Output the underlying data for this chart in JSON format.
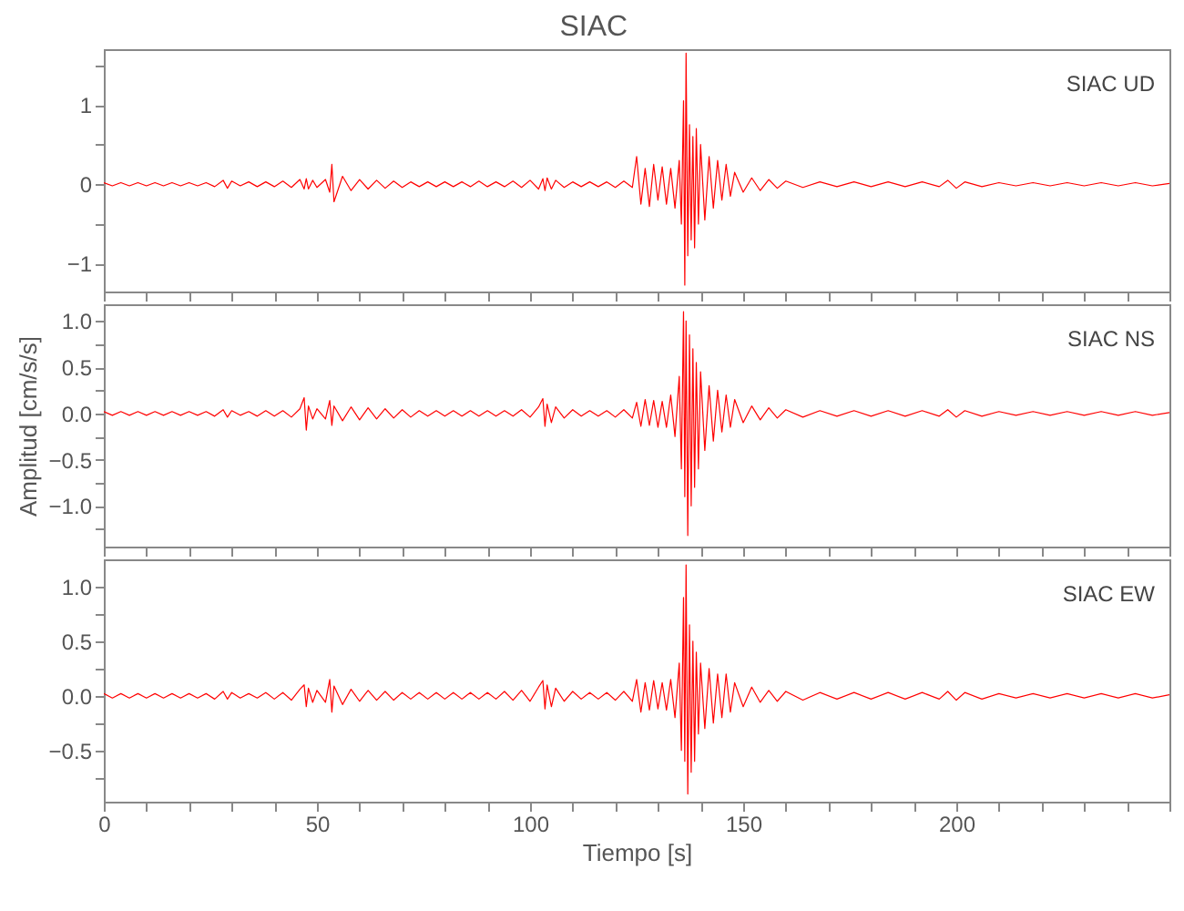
{
  "chart_data": [
    {
      "type": "line",
      "title": "SIAC",
      "annotations": [
        "SIAC UD"
      ],
      "x": [
        0,
        2,
        4,
        6,
        8,
        10,
        12,
        14,
        16,
        18,
        20,
        22,
        24,
        26,
        28,
        29,
        30,
        32,
        34,
        36,
        38,
        40,
        42,
        44,
        46,
        47,
        47.5,
        48,
        49,
        50,
        52,
        53,
        53.5,
        54,
        56,
        58,
        60,
        62,
        64,
        66,
        68,
        70,
        72,
        74,
        76,
        78,
        80,
        82,
        84,
        86,
        88,
        90,
        92,
        94,
        96,
        98,
        100,
        102,
        103,
        103.5,
        104,
        105,
        106,
        108,
        110,
        112,
        114,
        116,
        118,
        120,
        122,
        124,
        125,
        126,
        127,
        128,
        129,
        130,
        131,
        132,
        133,
        134,
        135,
        135.5,
        136,
        136.3,
        136.6,
        137,
        137.4,
        137.8,
        138.2,
        138.6,
        139,
        139.5,
        140,
        141,
        142,
        143,
        144,
        145,
        146,
        147,
        148,
        150,
        152,
        154,
        156,
        158,
        160,
        164,
        168,
        172,
        176,
        180,
        184,
        188,
        192,
        196,
        198,
        200,
        202,
        206,
        210,
        214,
        218,
        222,
        226,
        230,
        234,
        238,
        242,
        246,
        250
      ],
      "series": [
        {
          "color": "#ff0000",
          "values": [
            0.02,
            -0.02,
            0.02,
            -0.02,
            0.02,
            -0.02,
            0.02,
            -0.02,
            0.02,
            -0.02,
            0.02,
            -0.02,
            0.02,
            -0.03,
            0.05,
            -0.05,
            0.04,
            -0.02,
            0.03,
            -0.03,
            0.03,
            -0.03,
            0.04,
            -0.04,
            0.06,
            -0.06,
            0.07,
            -0.06,
            0.05,
            -0.04,
            0.06,
            -0.1,
            0.25,
            -0.22,
            0.1,
            -0.08,
            0.06,
            -0.06,
            0.05,
            -0.05,
            0.04,
            -0.04,
            0.03,
            -0.03,
            0.03,
            -0.03,
            0.03,
            -0.03,
            0.03,
            -0.03,
            0.04,
            -0.03,
            0.03,
            -0.03,
            0.04,
            -0.04,
            0.05,
            -0.06,
            0.07,
            -0.08,
            0.08,
            -0.06,
            0.05,
            -0.04,
            0.03,
            -0.03,
            0.03,
            -0.03,
            0.03,
            -0.04,
            0.04,
            -0.04,
            0.35,
            -0.25,
            0.2,
            -0.28,
            0.25,
            -0.2,
            0.22,
            -0.25,
            0.2,
            -0.3,
            0.3,
            -0.5,
            1.05,
            -1.27,
            1.65,
            -0.9,
            0.75,
            -0.7,
            0.6,
            -0.8,
            0.7,
            -0.5,
            0.5,
            -0.45,
            0.35,
            -0.3,
            0.3,
            -0.2,
            0.25,
            -0.15,
            0.15,
            -0.1,
            0.08,
            -0.08,
            0.06,
            -0.05,
            0.04,
            -0.04,
            0.03,
            -0.03,
            0.03,
            -0.03,
            0.03,
            -0.03,
            0.03,
            -0.03,
            0.05,
            -0.05,
            0.03,
            -0.03,
            0.02,
            -0.02,
            0.02,
            -0.02,
            0.02,
            -0.02,
            0.02,
            -0.02,
            0.02,
            -0.02,
            0.01
          ]
        }
      ],
      "xlim": [
        0,
        250
      ],
      "xticks": [
        0,
        {
          "value": 10,
          "label": null
        },
        {
          "value": 20,
          "label": null
        },
        {
          "value": 30,
          "label": null
        },
        {
          "value": 40,
          "label": null
        },
        50,
        {
          "value": 60,
          "label": null
        },
        {
          "value": 70,
          "label": null
        },
        {
          "value": 80,
          "label": null
        },
        {
          "value": 90,
          "label": null
        },
        100,
        {
          "value": 110,
          "label": null
        },
        {
          "value": 120,
          "label": null
        },
        {
          "value": 130,
          "label": null
        },
        {
          "value": 140,
          "label": null
        },
        150,
        {
          "value": 160,
          "label": null
        },
        {
          "value": 170,
          "label": null
        },
        {
          "value": 180,
          "label": null
        },
        {
          "value": 190,
          "label": null
        },
        200,
        {
          "value": 210,
          "label": null
        },
        {
          "value": 220,
          "label": null
        },
        {
          "value": 230,
          "label": null
        },
        {
          "value": 240,
          "label": null
        },
        {
          "value": 250,
          "label": null
        }
      ],
      "ylim": [
        -1.35,
        1.7
      ],
      "yticks": [
        -1,
        {
          "value": -0.5,
          "label": null
        },
        0,
        {
          "value": 0.5,
          "label": null
        },
        1,
        {
          "value": 1.5,
          "label": null
        }
      ],
      "tick_labels": "y"
    },
    {
      "type": "line",
      "ylabel": "Amplitud [cm/s/s]",
      "annotations": [
        "SIAC NS"
      ],
      "x": [
        0,
        2,
        4,
        6,
        8,
        10,
        12,
        14,
        16,
        18,
        20,
        22,
        24,
        26,
        28,
        29,
        30,
        32,
        34,
        36,
        38,
        40,
        42,
        44,
        46,
        47,
        47.5,
        48,
        49,
        50,
        52,
        53,
        53.5,
        54,
        56,
        58,
        60,
        62,
        64,
        66,
        68,
        70,
        72,
        74,
        76,
        78,
        80,
        82,
        84,
        86,
        88,
        90,
        92,
        94,
        96,
        98,
        100,
        102,
        103,
        103.5,
        104,
        105,
        106,
        108,
        110,
        112,
        114,
        116,
        118,
        120,
        122,
        124,
        125,
        126,
        127,
        128,
        129,
        130,
        131,
        132,
        133,
        134,
        135,
        135.5,
        136,
        136.3,
        136.6,
        137,
        137.4,
        137.8,
        138.2,
        138.6,
        139,
        139.5,
        140,
        141,
        142,
        143,
        144,
        145,
        146,
        147,
        148,
        150,
        152,
        154,
        156,
        158,
        160,
        164,
        168,
        172,
        176,
        180,
        184,
        188,
        192,
        196,
        198,
        200,
        202,
        206,
        210,
        214,
        218,
        222,
        226,
        230,
        234,
        238,
        242,
        246,
        250
      ],
      "series": [
        {
          "color": "#ff0000",
          "values": [
            0.02,
            -0.02,
            0.02,
            -0.02,
            0.02,
            -0.02,
            0.02,
            -0.02,
            0.02,
            -0.02,
            0.02,
            -0.02,
            0.02,
            -0.03,
            0.04,
            -0.04,
            0.03,
            -0.02,
            0.02,
            -0.03,
            0.03,
            -0.03,
            0.03,
            -0.04,
            0.05,
            0.17,
            -0.18,
            0.08,
            -0.06,
            0.05,
            -0.06,
            0.14,
            -0.13,
            0.08,
            -0.08,
            0.07,
            -0.07,
            0.06,
            -0.06,
            0.05,
            -0.05,
            0.04,
            -0.04,
            0.03,
            -0.03,
            0.03,
            -0.03,
            0.03,
            -0.03,
            0.03,
            -0.03,
            0.03,
            -0.03,
            0.03,
            -0.03,
            0.04,
            -0.04,
            0.07,
            0.16,
            -0.14,
            0.1,
            -0.1,
            0.07,
            -0.05,
            0.04,
            -0.03,
            0.03,
            -0.03,
            0.03,
            -0.04,
            0.04,
            -0.05,
            0.12,
            -0.14,
            0.15,
            -0.13,
            0.14,
            -0.15,
            0.13,
            -0.15,
            0.2,
            -0.25,
            0.4,
            -0.6,
            1.1,
            -0.9,
            1.0,
            -1.32,
            0.85,
            -1.0,
            0.7,
            -0.8,
            0.55,
            -0.6,
            0.45,
            -0.4,
            0.3,
            -0.3,
            0.25,
            -0.2,
            0.2,
            -0.15,
            0.15,
            -0.1,
            0.08,
            -0.07,
            0.06,
            -0.05,
            0.04,
            -0.04,
            0.03,
            -0.03,
            0.03,
            -0.03,
            0.03,
            -0.03,
            0.03,
            -0.03,
            0.04,
            -0.04,
            0.03,
            -0.03,
            0.02,
            -0.02,
            0.02,
            -0.02,
            0.02,
            -0.02,
            0.02,
            -0.02,
            0.02,
            -0.02,
            0.01
          ]
        }
      ],
      "xlim": [
        0,
        250
      ],
      "xticks": [
        0,
        {
          "value": 10,
          "label": null
        },
        {
          "value": 20,
          "label": null
        },
        {
          "value": 30,
          "label": null
        },
        {
          "value": 40,
          "label": null
        },
        50,
        {
          "value": 60,
          "label": null
        },
        {
          "value": 70,
          "label": null
        },
        {
          "value": 80,
          "label": null
        },
        {
          "value": 90,
          "label": null
        },
        100,
        {
          "value": 110,
          "label": null
        },
        {
          "value": 120,
          "label": null
        },
        {
          "value": 130,
          "label": null
        },
        {
          "value": 140,
          "label": null
        },
        150,
        {
          "value": 160,
          "label": null
        },
        {
          "value": 170,
          "label": null
        },
        {
          "value": 180,
          "label": null
        },
        {
          "value": 190,
          "label": null
        },
        200,
        {
          "value": 210,
          "label": null
        },
        {
          "value": 220,
          "label": null
        },
        {
          "value": 230,
          "label": null
        },
        {
          "value": 240,
          "label": null
        },
        {
          "value": 250,
          "label": null
        }
      ],
      "ylim": [
        -1.44,
        1.18
      ],
      "yticks": [
        {
          "value": -1.25,
          "label": null
        },
        {
          "value": -1,
          "label": "−1.0"
        },
        {
          "value": -0.75,
          "label": null
        },
        {
          "value": -0.5,
          "label": "−0.5"
        },
        {
          "value": -0.25,
          "label": null
        },
        {
          "value": 0,
          "label": "0.0"
        },
        {
          "value": 0.25,
          "label": null
        },
        {
          "value": 0.5,
          "label": "0.5"
        },
        {
          "value": 0.75,
          "label": null
        },
        {
          "value": 1,
          "label": "1.0"
        }
      ],
      "tick_labels": "y"
    },
    {
      "type": "line",
      "xlabel": "Tiempo [s]",
      "annotations": [
        "SIAC EW"
      ],
      "x": [
        0,
        2,
        4,
        6,
        8,
        10,
        12,
        14,
        16,
        18,
        20,
        22,
        24,
        26,
        28,
        29,
        30,
        32,
        34,
        36,
        38,
        40,
        42,
        44,
        46,
        47,
        47.5,
        48,
        49,
        50,
        52,
        53,
        53.5,
        54,
        56,
        58,
        60,
        62,
        64,
        66,
        68,
        70,
        72,
        74,
        76,
        78,
        80,
        82,
        84,
        86,
        88,
        90,
        92,
        94,
        96,
        98,
        100,
        102,
        103,
        103.5,
        104,
        105,
        106,
        108,
        110,
        112,
        114,
        116,
        118,
        120,
        122,
        124,
        125,
        126,
        127,
        128,
        129,
        130,
        131,
        132,
        133,
        134,
        135,
        135.5,
        136,
        136.3,
        136.6,
        137,
        137.4,
        137.8,
        138.2,
        138.6,
        139,
        139.5,
        140,
        141,
        142,
        143,
        144,
        145,
        146,
        147,
        148,
        150,
        152,
        154,
        156,
        158,
        160,
        164,
        168,
        172,
        176,
        180,
        184,
        188,
        192,
        196,
        198,
        200,
        202,
        206,
        210,
        214,
        218,
        222,
        226,
        230,
        234,
        238,
        242,
        246,
        250
      ],
      "series": [
        {
          "color": "#ff0000",
          "values": [
            0.02,
            -0.02,
            0.02,
            -0.02,
            0.02,
            -0.02,
            0.02,
            -0.02,
            0.02,
            -0.02,
            0.02,
            -0.02,
            0.02,
            -0.03,
            0.04,
            -0.03,
            0.03,
            -0.02,
            0.02,
            -0.02,
            0.03,
            -0.03,
            0.03,
            -0.04,
            0.06,
            0.1,
            -0.1,
            0.07,
            -0.06,
            0.05,
            -0.06,
            0.15,
            -0.15,
            0.09,
            -0.08,
            0.06,
            -0.05,
            0.05,
            -0.04,
            0.04,
            -0.04,
            0.03,
            -0.03,
            0.03,
            -0.03,
            0.03,
            -0.03,
            0.03,
            -0.03,
            0.03,
            -0.03,
            0.03,
            -0.03,
            0.04,
            -0.04,
            0.05,
            -0.05,
            0.08,
            0.14,
            -0.12,
            0.1,
            -0.1,
            0.07,
            -0.05,
            0.04,
            -0.03,
            0.03,
            -0.03,
            0.03,
            -0.04,
            0.04,
            -0.05,
            0.15,
            -0.15,
            0.12,
            -0.13,
            0.14,
            -0.12,
            0.12,
            -0.13,
            0.15,
            -0.2,
            0.3,
            -0.5,
            0.9,
            -0.6,
            1.2,
            -0.9,
            0.65,
            -0.7,
            0.5,
            -0.6,
            0.4,
            -0.35,
            0.3,
            -0.3,
            0.25,
            -0.25,
            0.2,
            -0.2,
            0.2,
            -0.15,
            0.12,
            -0.1,
            0.08,
            -0.06,
            0.05,
            -0.05,
            0.04,
            -0.04,
            0.03,
            -0.03,
            0.03,
            -0.03,
            0.03,
            -0.03,
            0.03,
            -0.03,
            0.04,
            -0.04,
            0.03,
            -0.03,
            0.02,
            -0.02,
            0.02,
            -0.02,
            0.02,
            -0.02,
            0.02,
            -0.02,
            0.02,
            -0.02,
            0.01
          ]
        }
      ],
      "xlim": [
        0,
        250
      ],
      "xticks": [
        0,
        {
          "value": 10,
          "label": null
        },
        {
          "value": 20,
          "label": null
        },
        {
          "value": 30,
          "label": null
        },
        {
          "value": 40,
          "label": null
        },
        50,
        {
          "value": 60,
          "label": null
        },
        {
          "value": 70,
          "label": null
        },
        {
          "value": 80,
          "label": null
        },
        {
          "value": 90,
          "label": null
        },
        100,
        {
          "value": 110,
          "label": null
        },
        {
          "value": 120,
          "label": null
        },
        {
          "value": 130,
          "label": null
        },
        {
          "value": 140,
          "label": null
        },
        150,
        {
          "value": 160,
          "label": null
        },
        {
          "value": 170,
          "label": null
        },
        {
          "value": 180,
          "label": null
        },
        {
          "value": 190,
          "label": null
        },
        200,
        {
          "value": 210,
          "label": null
        },
        {
          "value": 220,
          "label": null
        },
        {
          "value": 230,
          "label": null
        },
        {
          "value": 240,
          "label": null
        },
        {
          "value": 250,
          "label": null
        }
      ],
      "ylim": [
        -0.97,
        1.25
      ],
      "yticks": [
        {
          "value": -0.75,
          "label": null
        },
        {
          "value": -0.5,
          "label": "−0.5"
        },
        {
          "value": -0.25,
          "label": null
        },
        {
          "value": 0,
          "label": "0.0"
        },
        {
          "value": 0.25,
          "label": null
        },
        {
          "value": 0.5,
          "label": "0.5"
        },
        {
          "value": 0.75,
          "label": null
        },
        {
          "value": 1,
          "label": "1.0"
        }
      ]
    }
  ]
}
